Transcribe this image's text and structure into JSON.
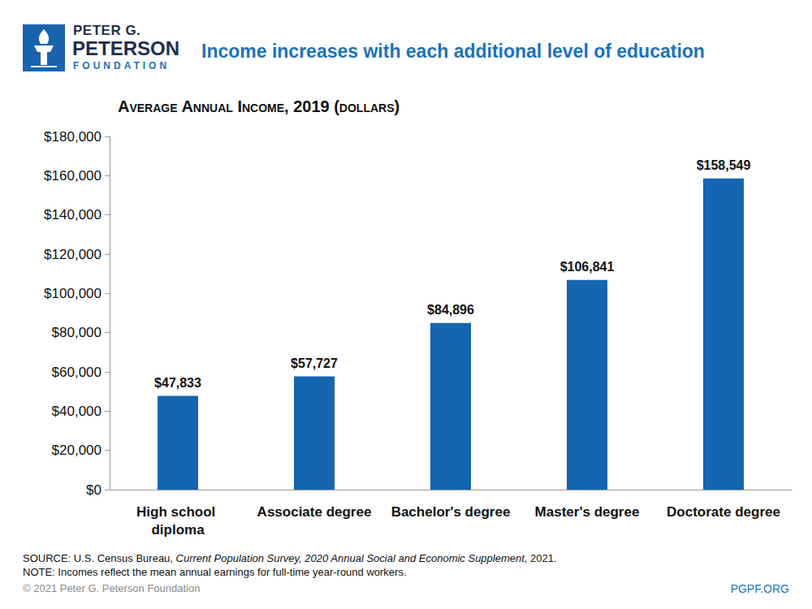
{
  "logo": [
    "PETER G.",
    "PETERSON",
    "FOUNDATION"
  ],
  "chart_data": {
    "type": "bar",
    "title": "Income increases with each additional level of education",
    "subtitle": "Average Annual Income, 2019 (dollars)",
    "categories": [
      "High school diploma",
      "Associate degree",
      "Bachelor's degree",
      "Master's degree",
      "Doctorate degree"
    ],
    "values": [
      47833,
      57727,
      84896,
      106841,
      158549
    ],
    "value_labels": [
      "$47,833",
      "$57,727",
      "$84,896",
      "$106,841",
      "$158,549"
    ],
    "color": "#1565b0",
    "ylim": [
      0,
      180000
    ],
    "yticks": [
      {
        "value": 0,
        "label": "$0"
      },
      {
        "value": 20000,
        "label": "$20,000"
      },
      {
        "value": 40000,
        "label": "$40,000"
      },
      {
        "value": 60000,
        "label": "$60,000"
      },
      {
        "value": 80000,
        "label": "$80,000"
      },
      {
        "value": 100000,
        "label": "$100,000"
      },
      {
        "value": 120000,
        "label": "$120,000"
      },
      {
        "value": 140000,
        "label": "$140,000"
      },
      {
        "value": 160000,
        "label": "$160,000"
      },
      {
        "value": 180000,
        "label": "$180,000"
      }
    ],
    "grid": false,
    "data_labels": true
  },
  "source": [
    "SOURCE: U.S. Census Bureau, ",
    "Current Population Survey, 2020 Annual Social and Economic Supplement",
    ", 2021."
  ],
  "note": "NOTE: Incomes reflect the mean annual earnings for full-time year-round workers.",
  "copyright": "© 2021 Peter G. Peterson Foundation",
  "website": "PGPF.ORG"
}
